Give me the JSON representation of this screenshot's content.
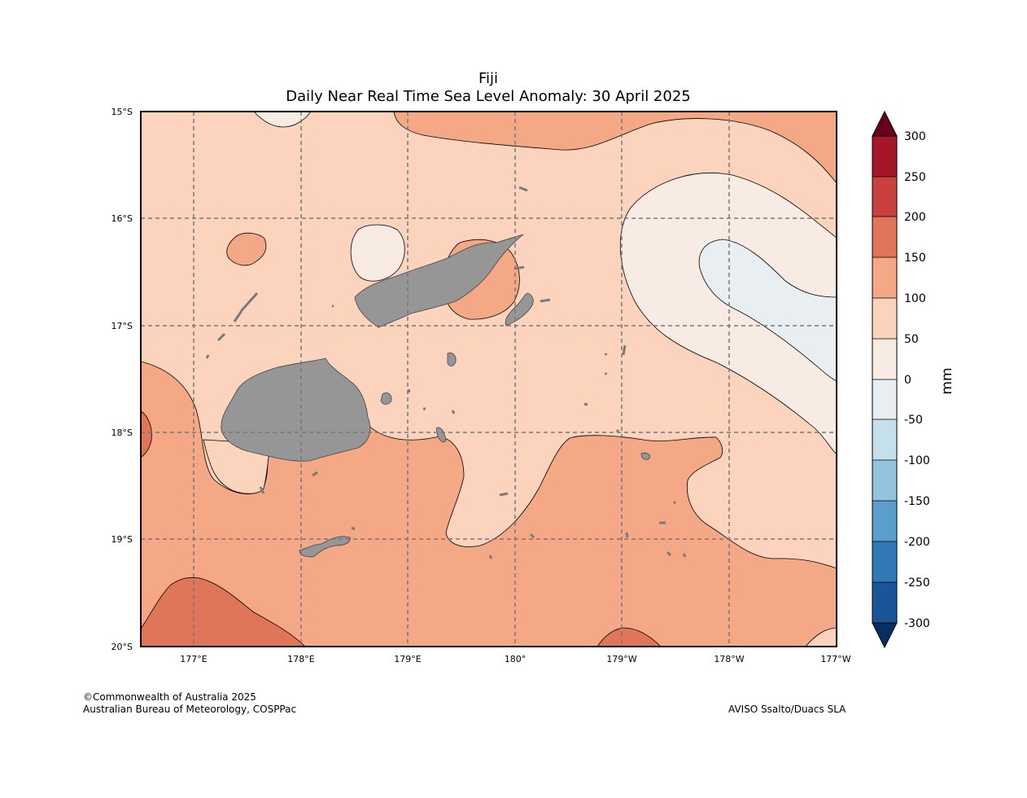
{
  "title": "Fiji",
  "subtitle": "Daily Near Real Time Sea Level Anomaly: 30 April 2025",
  "lat_ticks": [
    "15°S",
    "16°S",
    "17°S",
    "18°S",
    "19°S",
    "20°S"
  ],
  "lon_ticks": [
    "177°E",
    "178°E",
    "179°E",
    "180°",
    "179°W",
    "178°W",
    "177°W"
  ],
  "colorbar": {
    "unit": "mm",
    "tick_labels": [
      "300",
      "250",
      "200",
      "150",
      "100",
      "50",
      "0",
      "-50",
      "-100",
      "-150",
      "-200",
      "-250",
      "-300"
    ],
    "colors": [
      "#67001f",
      "#a51628",
      "#c9413e",
      "#e07659",
      "#f4a885",
      "#fcd4be",
      "#f8ebe4",
      "#e8eef2",
      "#c5dfed",
      "#93c4de",
      "#5a9ecb",
      "#3079b6",
      "#1a559a",
      "#053061"
    ]
  },
  "map_extent": {
    "lon_min": 176.5,
    "lon_max": 183.0,
    "lat_min": -20.0,
    "lat_max": -15.0
  },
  "land_color": "#969696",
  "credit_left": [
    "©Commonwealth of Australia 2025",
    "Australian Bureau of Meteorology, COSPPac"
  ],
  "credit_right": "AVISO Ssalto/Duacs SLA"
}
